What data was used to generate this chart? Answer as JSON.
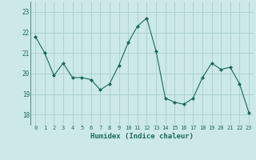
{
  "x": [
    0,
    1,
    2,
    3,
    4,
    5,
    6,
    7,
    8,
    9,
    10,
    11,
    12,
    13,
    14,
    15,
    16,
    17,
    18,
    19,
    20,
    21,
    22,
    23
  ],
  "y": [
    21.8,
    21.0,
    19.9,
    20.5,
    19.8,
    19.8,
    19.7,
    19.2,
    19.5,
    20.4,
    21.5,
    22.3,
    22.7,
    21.1,
    18.8,
    18.6,
    18.5,
    18.8,
    19.8,
    20.5,
    20.2,
    20.3,
    19.5,
    18.1
  ],
  "line_color": "#1a6b5a",
  "marker": "D",
  "marker_size": 2,
  "bg_color": "#cce8e8",
  "grid_color": "#aacfcf",
  "xlabel": "Humidex (Indice chaleur)",
  "ylim": [
    17.5,
    23.5
  ],
  "xlim": [
    -0.5,
    23.5
  ],
  "yticks": [
    18,
    19,
    20,
    21,
    22,
    23
  ],
  "xticks": [
    0,
    1,
    2,
    3,
    4,
    5,
    6,
    7,
    8,
    9,
    10,
    11,
    12,
    13,
    14,
    15,
    16,
    17,
    18,
    19,
    20,
    21,
    22,
    23
  ]
}
